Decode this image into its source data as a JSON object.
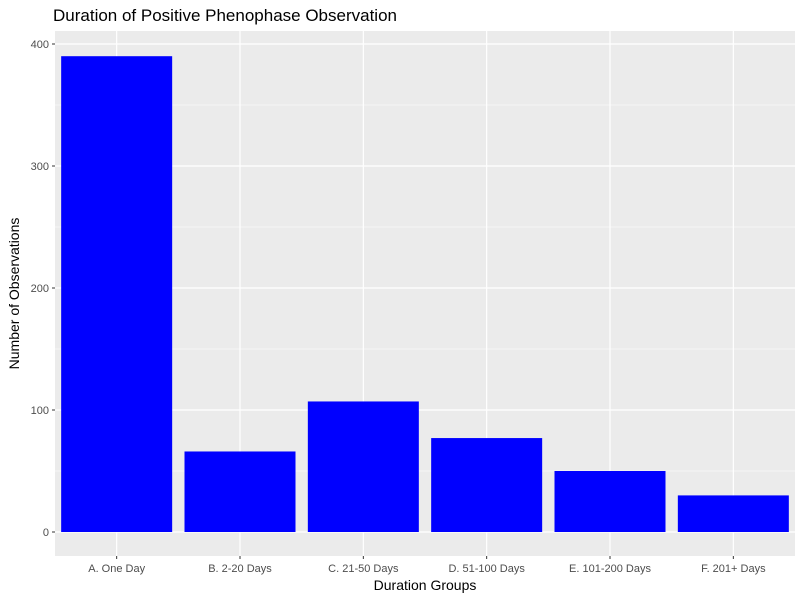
{
  "chart_data": {
    "type": "bar",
    "title": "Duration of Positive Phenophase Observation",
    "xlabel": "Duration Groups",
    "ylabel": "Number of Observations",
    "categories": [
      "A. One Day",
      "B. 2-20 Days",
      "C. 21-50 Days",
      "D. 51-100 Days",
      "E. 101-200 Days",
      "F. 201+ Days"
    ],
    "values": [
      390,
      66,
      107,
      77,
      50,
      30
    ],
    "ylim": [
      0,
      400
    ],
    "yticks": [
      "0",
      "100",
      "200",
      "300",
      "400"
    ],
    "grid": true,
    "legend": "none",
    "colors": {
      "bar": "#0000ff",
      "panel_background": "#ebebeb",
      "grid_major": "#ffffff",
      "tick_text": "#4d4d4d"
    }
  }
}
